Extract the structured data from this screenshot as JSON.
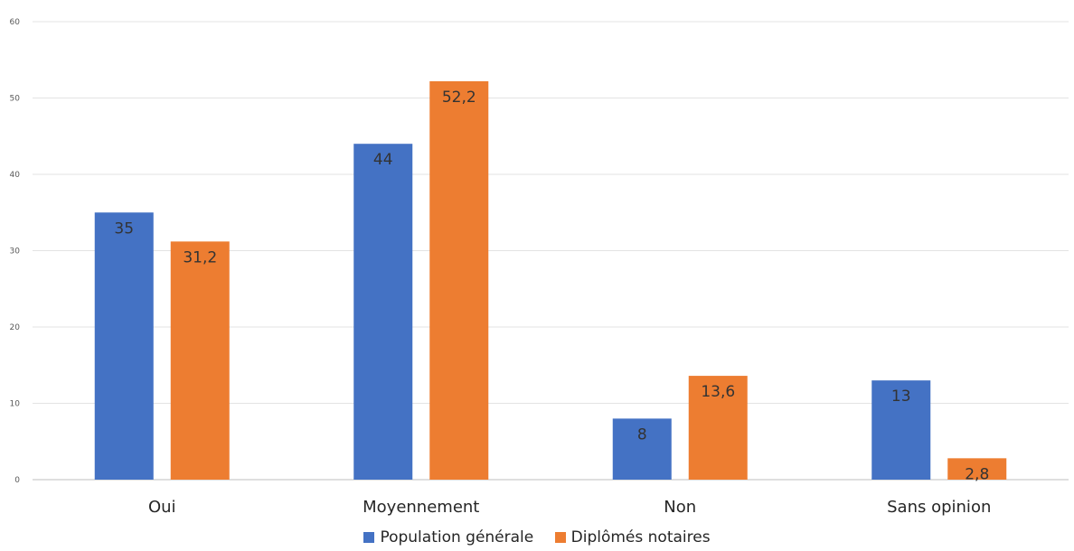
{
  "chart_data": {
    "type": "bar",
    "title": "",
    "xlabel": "",
    "ylabel": "",
    "ylim": [
      0,
      60
    ],
    "yticks": [
      0,
      10,
      20,
      30,
      40,
      50,
      60
    ],
    "grid": true,
    "legend_position": "bottom",
    "categories": [
      "Oui",
      "Moyennement",
      "Non",
      "Sans opinion"
    ],
    "series": [
      {
        "name": "Population générale",
        "color": "#4472C4",
        "values": [
          35,
          44,
          8,
          13
        ],
        "labels": [
          "35",
          "44",
          "8",
          "13"
        ]
      },
      {
        "name": "Diplômés notaires",
        "color": "#ED7D31",
        "values": [
          31.2,
          52.2,
          13.6,
          2.8
        ],
        "labels": [
          "31,2",
          "52,2",
          "13,6",
          "2,8"
        ]
      }
    ]
  }
}
